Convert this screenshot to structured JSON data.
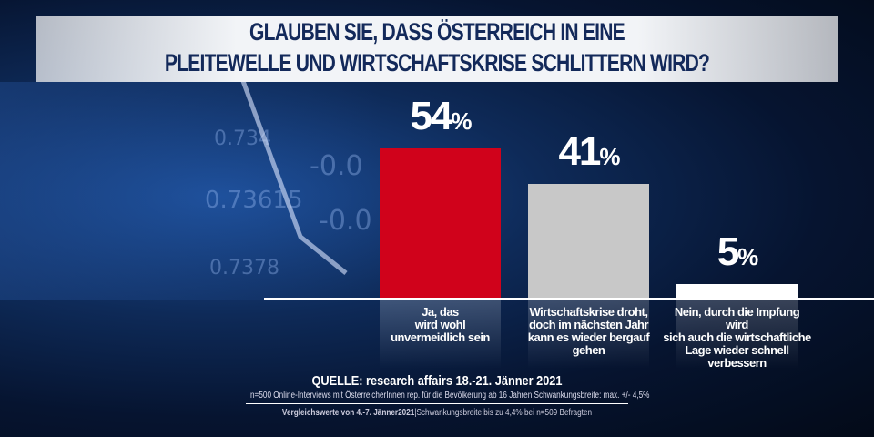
{
  "chart_data": {
    "type": "bar",
    "title": "GLAUBEN SIE, DASS ÖSTERREICH IN EINE PLEITEWELLE UND WIRTSCHAFTSKRISE SCHLITTERN WIRD?",
    "title_lines": [
      "GLAUBEN SIE, DASS ÖSTERREICH IN EINE",
      "PLEITEWELLE UND WIRTSCHAFTSKRISE SCHLITTERN WIRD?"
    ],
    "categories": [
      "Ja, das wird wohl unvermeidlich sein",
      "Wirtschaftskrise droht, doch im nächsten Jahr kann es wieder bergauf gehen",
      "Nein, durch die Impfung wird sich auch die wirtschaftliche Lage wieder schnell verbessern"
    ],
    "category_lines": [
      [
        "Ja, das",
        "wird wohl",
        "unvermeidlich sein"
      ],
      [
        "Wirtschaftskrise droht,",
        "doch im nächsten Jahr",
        "kann es wieder bergauf gehen"
      ],
      [
        "Nein, durch die Impfung wird",
        "sich auch die wirtschaftliche",
        "Lage wieder schnell",
        "verbessern"
      ]
    ],
    "values": [
      54,
      41,
      5
    ],
    "unit": "%",
    "colors": [
      "#d0021b",
      "#c8c8c8",
      "#ffffff"
    ],
    "ylim": [
      0,
      60
    ],
    "xlabel": "",
    "ylabel": ""
  },
  "footer": {
    "source": "QUELLE: research affairs 18.-21. Jänner 2021",
    "method": "n=500 Online-Interviews mit ÖsterreicherInnen rep. für die Bevölkerung ab 16 Jahren  Schwankungsbreite: max. +/- 4,5%",
    "compare_bold": "Vergleichswerte von 4.-7. Jänner2021",
    "compare_rest": "|Schwankungsbreite bis zu 4,4% bei n=509 Befragten"
  }
}
